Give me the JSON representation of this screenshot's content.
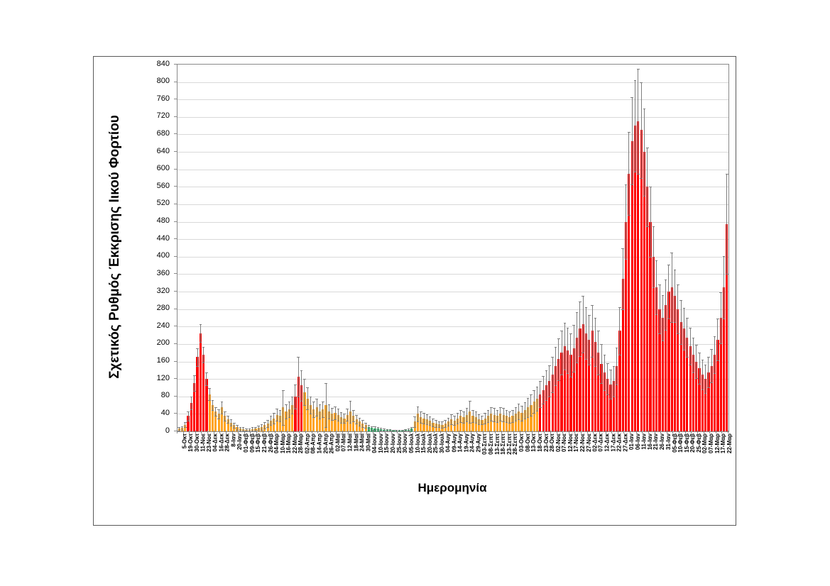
{
  "chart_data": {
    "type": "bar",
    "title": "",
    "xlabel": "Ημερομηνία",
    "ylabel": "Σχετικός Ρυθμός Έκκρισης Ιικού Φορτίου",
    "ylim": [
      0,
      840
    ],
    "ytick_step": 40,
    "yticks": [
      0,
      40,
      80,
      120,
      160,
      200,
      240,
      280,
      320,
      360,
      400,
      440,
      480,
      520,
      560,
      600,
      640,
      680,
      720,
      760,
      800,
      840
    ],
    "grid": "horizontal-on",
    "legend": "none",
    "error_bars": true,
    "label_every_n_bars": 2,
    "categories": [
      "5-Οκτ",
      "19-Οκτ",
      "30-Οκτ",
      "11-Νοε",
      "23-Νοε",
      "04-Δεκ",
      "16-Δεκ",
      "28-Δεκ",
      "8-Ιαν",
      "20-Ιαν",
      "01-Φεβ",
      "09-Φεβ",
      "15-Φεβ",
      "21-Φεβ",
      "26-Φεβ",
      "04-Μαρ",
      "10-Μαρ",
      "16-Μαρ",
      "22-Μαρ",
      "28-Μαρ",
      "02-Απρ",
      "08-Απρ",
      "14-Απρ",
      "20-Απρ",
      "26-Απρ",
      "02-Μαϊ",
      "07-Μαϊ",
      "12-Μαϊ",
      "18-Μαϊ",
      "24-Μαϊ",
      "30-Μαϊ",
      "04-Ιουν",
      "10-Ιουν",
      "15-Ιουν",
      "20-Ιουν",
      "25-Ιουν",
      "30-Ιουν",
      "05-Ιουλ",
      "10-Ιουλ",
      "15-Ιουλ",
      "20-Ιουλ",
      "25-Ιουλ",
      "30-Ιουλ",
      "04-Αυγ",
      "09-Αυγ",
      "14-Αυγ",
      "19-Αυγ",
      "24-Αυγ",
      "29-Αυγ",
      "03-Σεπτ",
      "08-Σεπτ",
      "13-Σεπτ",
      "18-Σεπτ",
      "23-Σεπτ",
      "28-Σεπτ",
      "03-Οκτ",
      "08-Οκτ",
      "13-Οκτ",
      "18-Οκτ",
      "23-Οκτ",
      "28-Οκτ",
      "02-Νοε",
      "07-Νοε",
      "12-Νοε",
      "17-Νοε",
      "22-Νοε",
      "27-Νοε",
      "02-Δεκ",
      "07-Δεκ",
      "12-Δεκ",
      "17-Δεκ",
      "22-Δεκ",
      "27-Δεκ",
      "01-Ιαν",
      "06-Ιαν",
      "11-Ιαν",
      "16-Ιαν",
      "21-Ιαν",
      "26-Ιαν",
      "31-Ιαν",
      "05-Φεβ",
      "10-Φεβ",
      "15-Φεβ",
      "20-Φεβ",
      "25-Φεβ",
      "02-Μαρ",
      "07-Μαρ",
      "12-Μαρ",
      "17-Μαρ",
      "22-Μαρ"
    ],
    "values": [
      6,
      8,
      15,
      35,
      65,
      110,
      170,
      225,
      175,
      120,
      85,
      60,
      45,
      40,
      55,
      35,
      28,
      20,
      14,
      9,
      6,
      5,
      4,
      4,
      5,
      6,
      8,
      10,
      14,
      18,
      25,
      30,
      38,
      35,
      55,
      45,
      50,
      60,
      80,
      125,
      105,
      90,
      75,
      60,
      50,
      55,
      45,
      50,
      60,
      45,
      40,
      42,
      38,
      32,
      30,
      38,
      45,
      35,
      28,
      22,
      18,
      14,
      10,
      8,
      7,
      6,
      5,
      4,
      3,
      3,
      2,
      2,
      2,
      2,
      3,
      4,
      6,
      22,
      40,
      32,
      30,
      28,
      24,
      20,
      18,
      16,
      15,
      18,
      22,
      28,
      25,
      30,
      35,
      32,
      38,
      45,
      35,
      32,
      28,
      26,
      30,
      35,
      40,
      38,
      35,
      40,
      38,
      35,
      32,
      35,
      40,
      45,
      42,
      48,
      55,
      60,
      68,
      75,
      85,
      95,
      105,
      115,
      130,
      150,
      165,
      180,
      195,
      185,
      175,
      190,
      215,
      235,
      245,
      225,
      210,
      230,
      205,
      180,
      155,
      135,
      120,
      108,
      115,
      150,
      230,
      350,
      480,
      590,
      665,
      700,
      710,
      690,
      640,
      560,
      480,
      400,
      330,
      280,
      260,
      290,
      320,
      330,
      310,
      280,
      250,
      235,
      215,
      195,
      175,
      160,
      145,
      130,
      120,
      135,
      150,
      175,
      210,
      260,
      330,
      475
    ],
    "errors": [
      4,
      4,
      6,
      10,
      15,
      18,
      20,
      20,
      18,
      15,
      14,
      12,
      10,
      10,
      14,
      10,
      8,
      7,
      6,
      5,
      4,
      4,
      3,
      3,
      4,
      4,
      5,
      6,
      7,
      8,
      10,
      12,
      14,
      13,
      40,
      16,
      18,
      20,
      28,
      45,
      35,
      30,
      25,
      20,
      18,
      20,
      16,
      18,
      50,
      16,
      14,
      15,
      14,
      12,
      11,
      14,
      25,
      13,
      10,
      9,
      8,
      6,
      5,
      4,
      4,
      3,
      3,
      2,
      2,
      2,
      2,
      2,
      2,
      2,
      2,
      2,
      3,
      12,
      17,
      13,
      12,
      11,
      10,
      9,
      8,
      7,
      7,
      8,
      9,
      11,
      10,
      12,
      14,
      13,
      15,
      25,
      14,
      13,
      11,
      10,
      12,
      14,
      16,
      15,
      14,
      16,
      15,
      14,
      13,
      14,
      16,
      18,
      17,
      19,
      22,
      24,
      26,
      28,
      30,
      32,
      34,
      36,
      40,
      44,
      48,
      50,
      54,
      52,
      50,
      53,
      58,
      62,
      65,
      60,
      57,
      60,
      55,
      50,
      45,
      40,
      36,
      33,
      35,
      42,
      55,
      70,
      85,
      95,
      100,
      105,
      120,
      110,
      100,
      90,
      80,
      70,
      62,
      56,
      52,
      58,
      62,
      80,
      60,
      56,
      50,
      48,
      45,
      42,
      40,
      38,
      36,
      34,
      32,
      35,
      38,
      42,
      48,
      58,
      72,
      115
    ],
    "color_segments": [
      {
        "from": 0,
        "to": 2,
        "color": "orange"
      },
      {
        "from": 3,
        "to": 9,
        "color": "red"
      },
      {
        "from": 10,
        "to": 37,
        "color": "orange"
      },
      {
        "from": 38,
        "to": 40,
        "color": "red"
      },
      {
        "from": 41,
        "to": 61,
        "color": "orange"
      },
      {
        "from": 62,
        "to": 76,
        "color": "green"
      },
      {
        "from": 77,
        "to": 117,
        "color": "orange"
      },
      {
        "from": 118,
        "to": 179,
        "color": "red"
      }
    ],
    "colors": {
      "red": "#FF0000",
      "orange": "#FFA321",
      "green": "#00B050",
      "error_bar": "#7F7F7F",
      "gridline": "#D9D9D9",
      "axis": "#8A8A8A",
      "figure_border": "#595959",
      "background": "#FFFFFF"
    }
  }
}
